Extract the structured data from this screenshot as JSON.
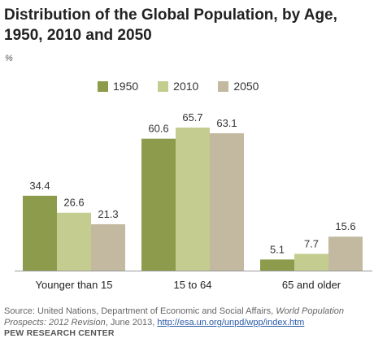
{
  "title": "Distribution of the Global Population, by Age, 1950, 2010 and 2050",
  "unit_label": "%",
  "colors": {
    "1950": "#8c9c4c",
    "2010": "#c4cd8f",
    "2050": "#c2b9a0"
  },
  "chart_data": {
    "type": "bar",
    "title": "Distribution of the Global Population, by Age, 1950, 2010 and 2050",
    "ylabel": "%",
    "xlabel": "",
    "categories": [
      "Younger than 15",
      "15 to 64",
      "65 and older"
    ],
    "series": [
      {
        "name": "1950",
        "values": [
          34.4,
          60.6,
          5.1
        ]
      },
      {
        "name": "2010",
        "values": [
          26.6,
          65.7,
          7.7
        ]
      },
      {
        "name": "2050",
        "values": [
          21.3,
          63.1,
          15.6
        ]
      }
    ],
    "ylim": [
      0,
      65.7
    ],
    "grid": false,
    "legend": "top-center"
  },
  "source": {
    "prefix": "Source: United Nations, Department of Economic and Social Affairs, ",
    "publication": "World Population Prospects: 2012 Revision",
    "suffix": ", June 2013, ",
    "link": "http://esa.un.org/unpd/wpp/index.htm"
  },
  "credit": "PEW RESEARCH CENTER"
}
